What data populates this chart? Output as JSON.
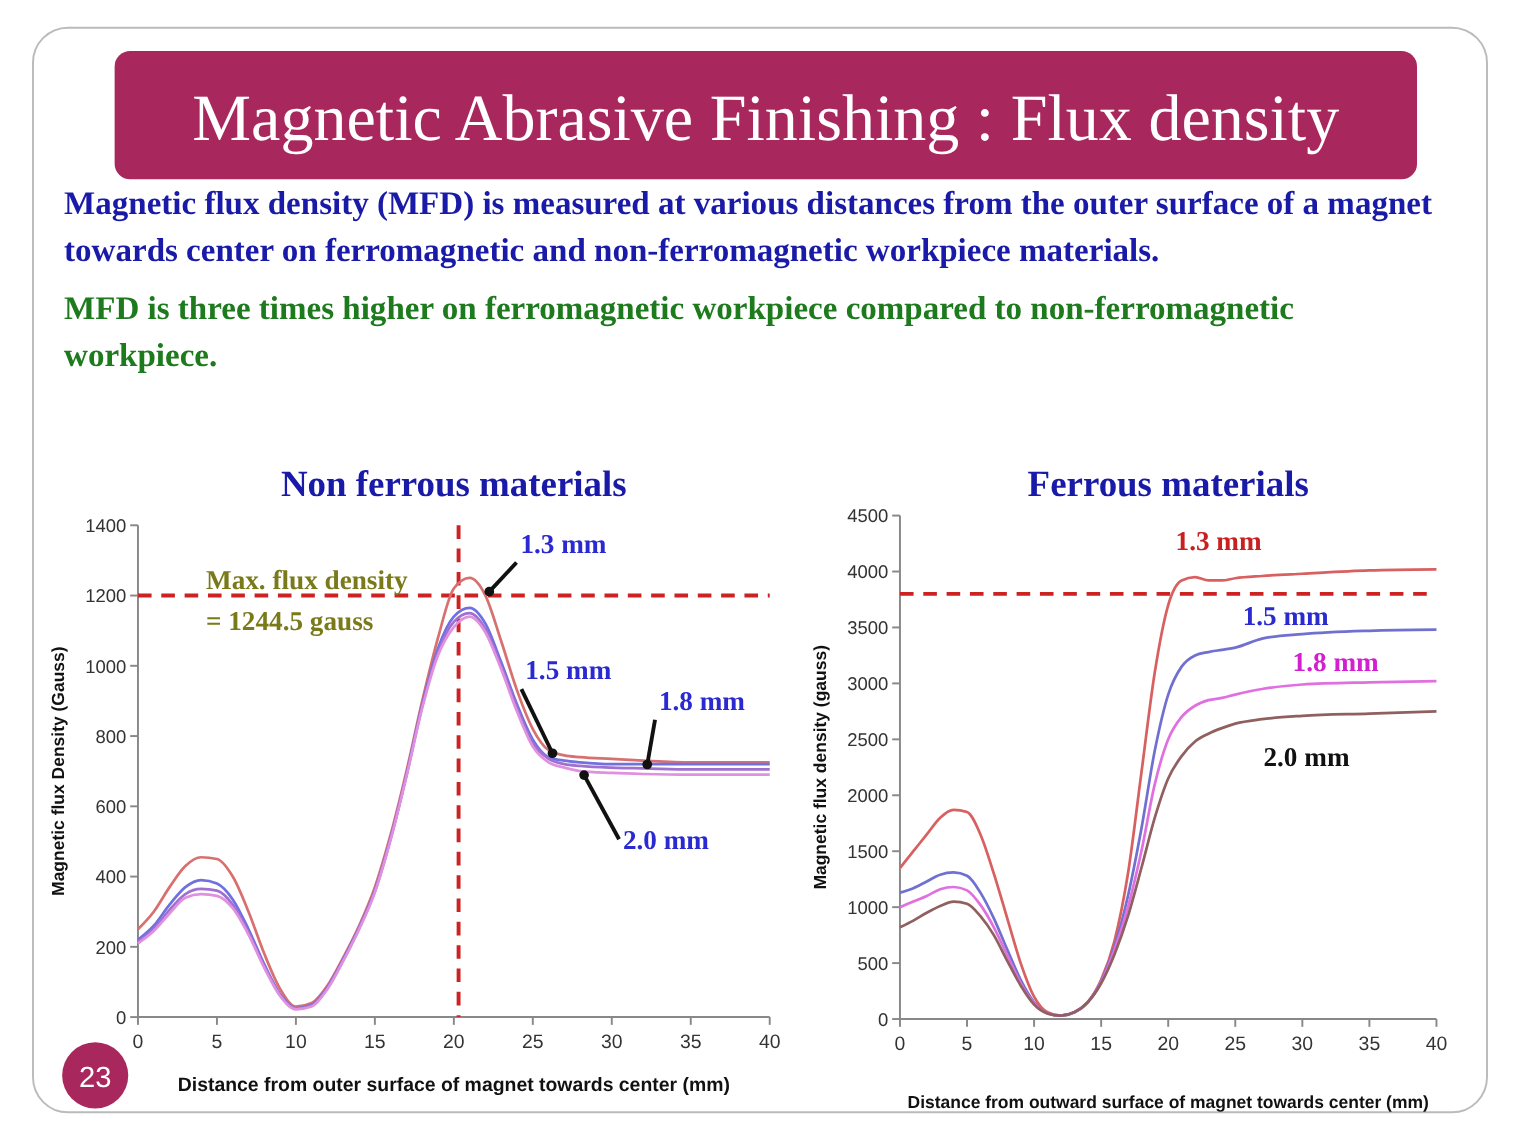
{
  "chart_data": [
    {
      "type": "other",
      "title": "Magnetic Abrasive Finishing : Flux density",
      "annotations": [
        "Magnetic flux density (MFD) is measured at various distances from the outer surface of a magnet towards center on ferromagnetic and non-ferromagnetic workpiece materials.",
        "MFD is three times higher on ferromagnetic workpiece compared to non-ferromagnetic workpiece.",
        "23"
      ]
    },
    {
      "type": "line",
      "title": "Non ferrous materials",
      "xlabel": "Distance from outer surface of magnet towards center (mm)",
      "ylabel": "Magnetic flux Density (Gauss)",
      "x": [
        0,
        1,
        2,
        3,
        4,
        5,
        6,
        7,
        8,
        9,
        10,
        11,
        12,
        13,
        14,
        15,
        16,
        17,
        18,
        19,
        20,
        21,
        22,
        23,
        24,
        25,
        26,
        27,
        28,
        30,
        32,
        35,
        38,
        40
      ],
      "xlim": [
        0,
        40
      ],
      "xticks": [
        0,
        5,
        10,
        15,
        20,
        25,
        30,
        35,
        40
      ],
      "ylim": [
        0,
        1400
      ],
      "yticks": [
        0,
        200,
        400,
        600,
        800,
        1000,
        1200,
        1400
      ],
      "legend": false,
      "grid": false,
      "marker": "none",
      "line_style": "solid",
      "series": [
        {
          "name": "1.3 mm",
          "color": "#d87070",
          "values": [
            250,
            300,
            370,
            430,
            455,
            450,
            400,
            300,
            180,
            80,
            30,
            40,
            90,
            170,
            260,
            370,
            520,
            700,
            900,
            1080,
            1220,
            1250,
            1200,
            1070,
            930,
            820,
            760,
            745,
            740,
            735,
            730,
            725,
            725,
            725
          ]
        },
        {
          "name": "1.5 mm",
          "color": "#7070e0",
          "values": [
            220,
            260,
            320,
            370,
            390,
            380,
            335,
            250,
            150,
            65,
            25,
            35,
            85,
            165,
            255,
            360,
            510,
            690,
            890,
            1050,
            1140,
            1165,
            1120,
            1010,
            890,
            790,
            740,
            730,
            725,
            720,
            720,
            720,
            720,
            720
          ]
        },
        {
          "name": "1.8 mm",
          "color": "#a070d0",
          "values": [
            215,
            250,
            305,
            350,
            365,
            360,
            320,
            240,
            145,
            62,
            24,
            33,
            82,
            162,
            252,
            358,
            508,
            688,
            885,
            1040,
            1125,
            1150,
            1105,
            1000,
            880,
            780,
            735,
            720,
            715,
            710,
            708,
            705,
            705,
            705
          ]
        },
        {
          "name": "2.0 mm",
          "color": "#e090e0",
          "values": [
            210,
            245,
            295,
            340,
            350,
            345,
            310,
            235,
            140,
            60,
            22,
            30,
            80,
            160,
            250,
            355,
            505,
            685,
            880,
            1030,
            1110,
            1140,
            1095,
            990,
            870,
            770,
            725,
            710,
            700,
            695,
            692,
            690,
            690,
            690
          ]
        }
      ],
      "ref_lines": [
        {
          "axis": "y",
          "value": 1200,
          "color": "#cc2222",
          "line_style": "dashed"
        },
        {
          "axis": "x",
          "value": 20.3,
          "color": "#cc2222",
          "line_style": "dashed"
        }
      ],
      "annotations": [
        "Max. flux density",
        "= 1244.5 gauss"
      ]
    },
    {
      "type": "line",
      "title": "Ferrous materials",
      "xlabel": "Distance from outward surface of magnet towards center (mm)",
      "ylabel": "Magnetic flux density (gauss)",
      "x": [
        0,
        1,
        2,
        3,
        4,
        5,
        6,
        7,
        8,
        9,
        10,
        11,
        12,
        13,
        14,
        15,
        16,
        17,
        18,
        19,
        20,
        21,
        22,
        23,
        24,
        25,
        27,
        30,
        35,
        40
      ],
      "xlim": [
        0,
        40
      ],
      "xticks": [
        0,
        5,
        10,
        15,
        20,
        25,
        30,
        35,
        40
      ],
      "ylim": [
        0,
        4500
      ],
      "yticks": [
        0,
        500,
        1000,
        1500,
        2000,
        2500,
        3000,
        3500,
        4000,
        4500
      ],
      "legend": false,
      "grid": false,
      "marker": "none",
      "line_style": "solid",
      "series": [
        {
          "name": "1.3 mm",
          "color": "#d86060",
          "values": [
            1350,
            1500,
            1650,
            1800,
            1870,
            1850,
            1650,
            1300,
            900,
            500,
            200,
            60,
            30,
            60,
            150,
            350,
            700,
            1300,
            2200,
            3100,
            3700,
            3920,
            3950,
            3920,
            3920,
            3940,
            3960,
            3980,
            4010,
            4020
          ]
        },
        {
          "name": "1.5 mm",
          "color": "#7070d0",
          "values": [
            1130,
            1170,
            1230,
            1290,
            1310,
            1280,
            1130,
            900,
            620,
            350,
            150,
            50,
            30,
            60,
            150,
            340,
            650,
            1100,
            1700,
            2400,
            2900,
            3150,
            3250,
            3280,
            3300,
            3320,
            3400,
            3440,
            3470,
            3480
          ]
        },
        {
          "name": "1.8 mm",
          "color": "#e070e0",
          "values": [
            1000,
            1050,
            1100,
            1160,
            1180,
            1150,
            1020,
            820,
            570,
            320,
            140,
            50,
            30,
            60,
            150,
            330,
            620,
            1000,
            1500,
            2100,
            2500,
            2700,
            2800,
            2850,
            2870,
            2900,
            2950,
            2990,
            3010,
            3020
          ]
        },
        {
          "name": "2.0 mm",
          "color": "#906060",
          "values": [
            820,
            880,
            950,
            1010,
            1050,
            1030,
            920,
            750,
            520,
            300,
            130,
            50,
            30,
            60,
            150,
            320,
            580,
            920,
            1350,
            1800,
            2150,
            2350,
            2480,
            2550,
            2600,
            2640,
            2680,
            2710,
            2730,
            2750
          ]
        }
      ],
      "ref_lines": [
        {
          "axis": "y",
          "value": 3800,
          "color": "#cc2222",
          "line_style": "dashed"
        }
      ]
    }
  ]
}
